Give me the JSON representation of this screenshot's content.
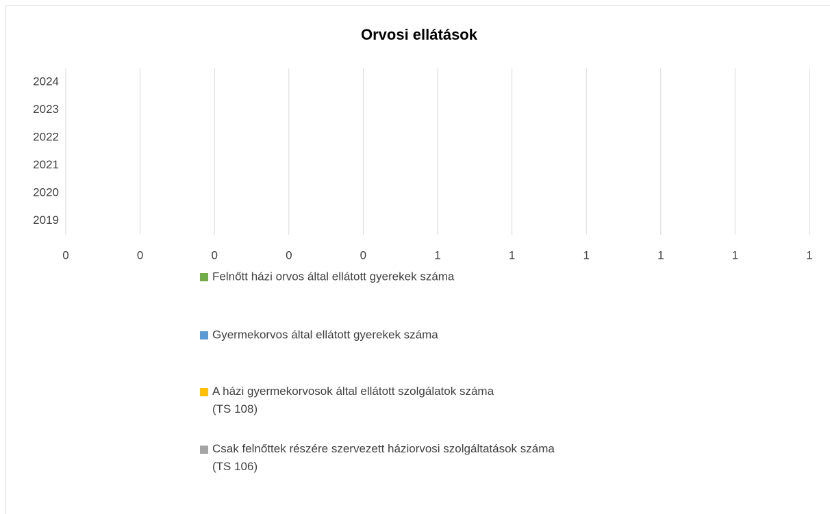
{
  "chart_data": {
    "type": "hbar",
    "title": "Orvosi ellátások",
    "categories": [
      "2019",
      "2020",
      "2021",
      "2022",
      "2023",
      "2024"
    ],
    "series": [
      {
        "name": "Felnőtt házi orvos által ellátott gyerekek száma",
        "color": "#70ad47",
        "values": [
          0,
          0,
          0,
          0,
          0,
          0
        ]
      },
      {
        "name": "Gyermekorvos által ellátott gyerekek száma",
        "color": "#5b9bd5",
        "values": [
          0,
          0,
          0,
          0,
          0,
          0
        ]
      },
      {
        "name": "A házi gyermekorvosok által ellátott szolgálatok száma\n(TS 108)",
        "color": "#ffc000",
        "values": [
          0,
          0,
          0,
          0,
          0,
          0
        ]
      },
      {
        "name": "Csak felnőttek részére szervezett háziorvosi szolgáltatások száma\n(TS 106)",
        "color": "#a5a5a5",
        "values": [
          0,
          0,
          0,
          0,
          0,
          0
        ]
      }
    ],
    "xlim": [
      0,
      1
    ],
    "xticks": [
      0,
      {
        "value": 0.1,
        "label": "0"
      },
      {
        "value": 0.2,
        "label": "0"
      },
      {
        "value": 0.3,
        "label": "0"
      },
      {
        "value": 0.4,
        "label": "0"
      },
      {
        "value": 0.5,
        "label": "1"
      },
      {
        "value": 0.6,
        "label": "1"
      },
      {
        "value": 0.7,
        "label": "1"
      },
      {
        "value": 0.8,
        "label": "1"
      },
      {
        "value": 0.9,
        "label": "1"
      },
      1
    ],
    "grid": true,
    "legend": "bottom"
  }
}
